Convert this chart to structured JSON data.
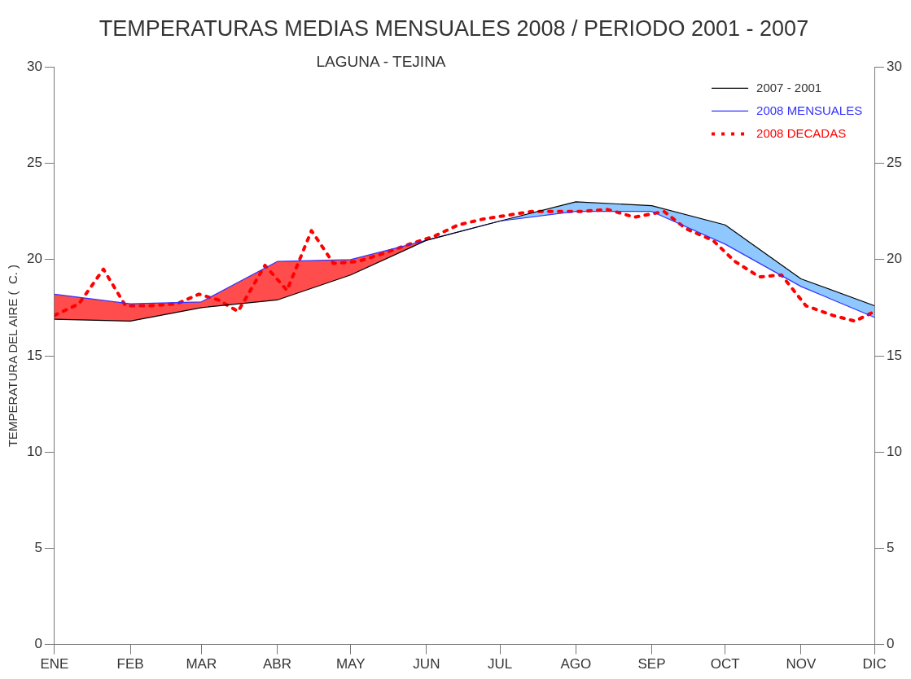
{
  "chart_data": {
    "type": "line",
    "title": "TEMPERATURAS MEDIAS MENSUALES 2008 / PERIODO 2001 - 2007",
    "subtitle": "LAGUNA - TEJINA",
    "ylabel": "TEMPERATURA DEL AIRE (  C. )",
    "xlim": [
      "2008-01-01",
      "2008-12-01"
    ],
    "xticks": [
      {
        "value": "2008-01-01",
        "label": "ENE"
      },
      {
        "value": "2008-02-01",
        "label": "FEB"
      },
      {
        "value": "2008-03-01",
        "label": "MAR"
      },
      {
        "value": "2008-04-01",
        "label": "ABR"
      },
      {
        "value": "2008-05-01",
        "label": "MAY"
      },
      {
        "value": "2008-06-01",
        "label": "JUN"
      },
      {
        "value": "2008-07-01",
        "label": "JUL"
      },
      {
        "value": "2008-08-01",
        "label": "AGO"
      },
      {
        "value": "2008-09-01",
        "label": "SEP"
      },
      {
        "value": "2008-10-01",
        "label": "OCT"
      },
      {
        "value": "2008-11-01",
        "label": "NOV"
      },
      {
        "value": "2008-12-01",
        "label": "DIC"
      }
    ],
    "ylim": [
      0,
      30
    ],
    "yticks": [
      0,
      5,
      10,
      15,
      20,
      25,
      30
    ],
    "y2lim": [
      0,
      30
    ],
    "y2ticks": [
      0,
      5,
      10,
      15,
      20,
      25,
      30
    ],
    "legend": "top right",
    "grid": false,
    "marker": "none",
    "series": [
      {
        "name": "2007 - 2001",
        "color": "#000000",
        "line_style": "solid",
        "x": [
          "2008-01-01",
          "2008-02-01",
          "2008-03-01",
          "2008-04-01",
          "2008-05-01",
          "2008-06-01",
          "2008-07-01",
          "2008-08-01",
          "2008-09-01",
          "2008-10-01",
          "2008-11-01",
          "2008-12-01"
        ],
        "values": [
          16.9,
          16.8,
          17.5,
          17.9,
          19.2,
          21.0,
          22.0,
          23.0,
          22.8,
          21.8,
          19.0,
          17.6
        ],
        "lower": [
          16.9,
          16.8,
          17.5,
          17.9,
          19.2,
          21.0,
          22.0,
          22.5,
          22.5,
          20.8,
          18.6,
          17.0
        ],
        "upper": [
          16.9,
          16.8,
          17.5,
          17.9,
          19.2,
          21.0,
          22.0,
          23.0,
          22.8,
          21.8,
          19.0,
          17.6
        ]
      },
      {
        "name": "2008 MENSUALES",
        "color": "#3333ff",
        "line_style": "solid",
        "x": [
          "2008-01-01",
          "2008-02-01",
          "2008-03-01",
          "2008-04-01",
          "2008-05-01",
          "2008-06-01",
          "2008-07-01",
          "2008-08-01",
          "2008-09-01",
          "2008-10-01",
          "2008-11-01",
          "2008-12-01"
        ],
        "values": [
          18.2,
          17.7,
          17.8,
          19.9,
          20.0,
          21.0,
          22.0,
          22.5,
          22.5,
          20.8,
          18.6,
          17.0
        ],
        "lower": [
          16.9,
          16.8,
          17.5,
          17.9,
          19.2,
          21.0,
          22.0,
          22.5,
          22.5,
          20.8,
          18.6,
          17.0
        ],
        "upper": [
          18.2,
          17.7,
          17.8,
          19.9,
          20.0,
          21.0,
          22.0,
          22.5,
          22.5,
          20.8,
          18.6,
          17.0
        ]
      },
      {
        "name": "2008 DECADAS",
        "color": "#ff0000",
        "line_style": "dotted",
        "x": [
          "2008-01-01",
          "2008-01-11",
          "2008-01-21",
          "2008-01-30",
          "2008-02-09",
          "2008-02-20",
          "2008-02-29",
          "2008-03-08",
          "2008-03-16",
          "2008-03-27",
          "2008-04-05",
          "2008-04-15",
          "2008-04-24",
          "2008-05-04",
          "2008-05-14",
          "2008-05-25",
          "2008-06-04",
          "2008-06-14",
          "2008-06-24",
          "2008-07-04",
          "2008-07-14",
          "2008-07-24",
          "2008-08-03",
          "2008-08-14",
          "2008-08-25",
          "2008-09-06",
          "2008-09-15",
          "2008-09-26",
          "2008-10-05",
          "2008-10-15",
          "2008-10-24",
          "2008-11-03",
          "2008-11-14",
          "2008-11-23",
          "2008-12-01"
        ],
        "values": [
          17.1,
          17.7,
          19.5,
          17.6,
          17.6,
          17.7,
          18.2,
          17.9,
          17.3,
          19.7,
          18.4,
          21.5,
          19.8,
          19.9,
          20.3,
          20.8,
          21.2,
          21.8,
          22.1,
          22.3,
          22.5,
          22.5,
          22.5,
          22.6,
          22.2,
          22.5,
          21.6,
          21.0,
          19.9,
          19.1,
          19.2,
          17.6,
          17.1,
          16.8,
          17.3
        ]
      }
    ]
  }
}
